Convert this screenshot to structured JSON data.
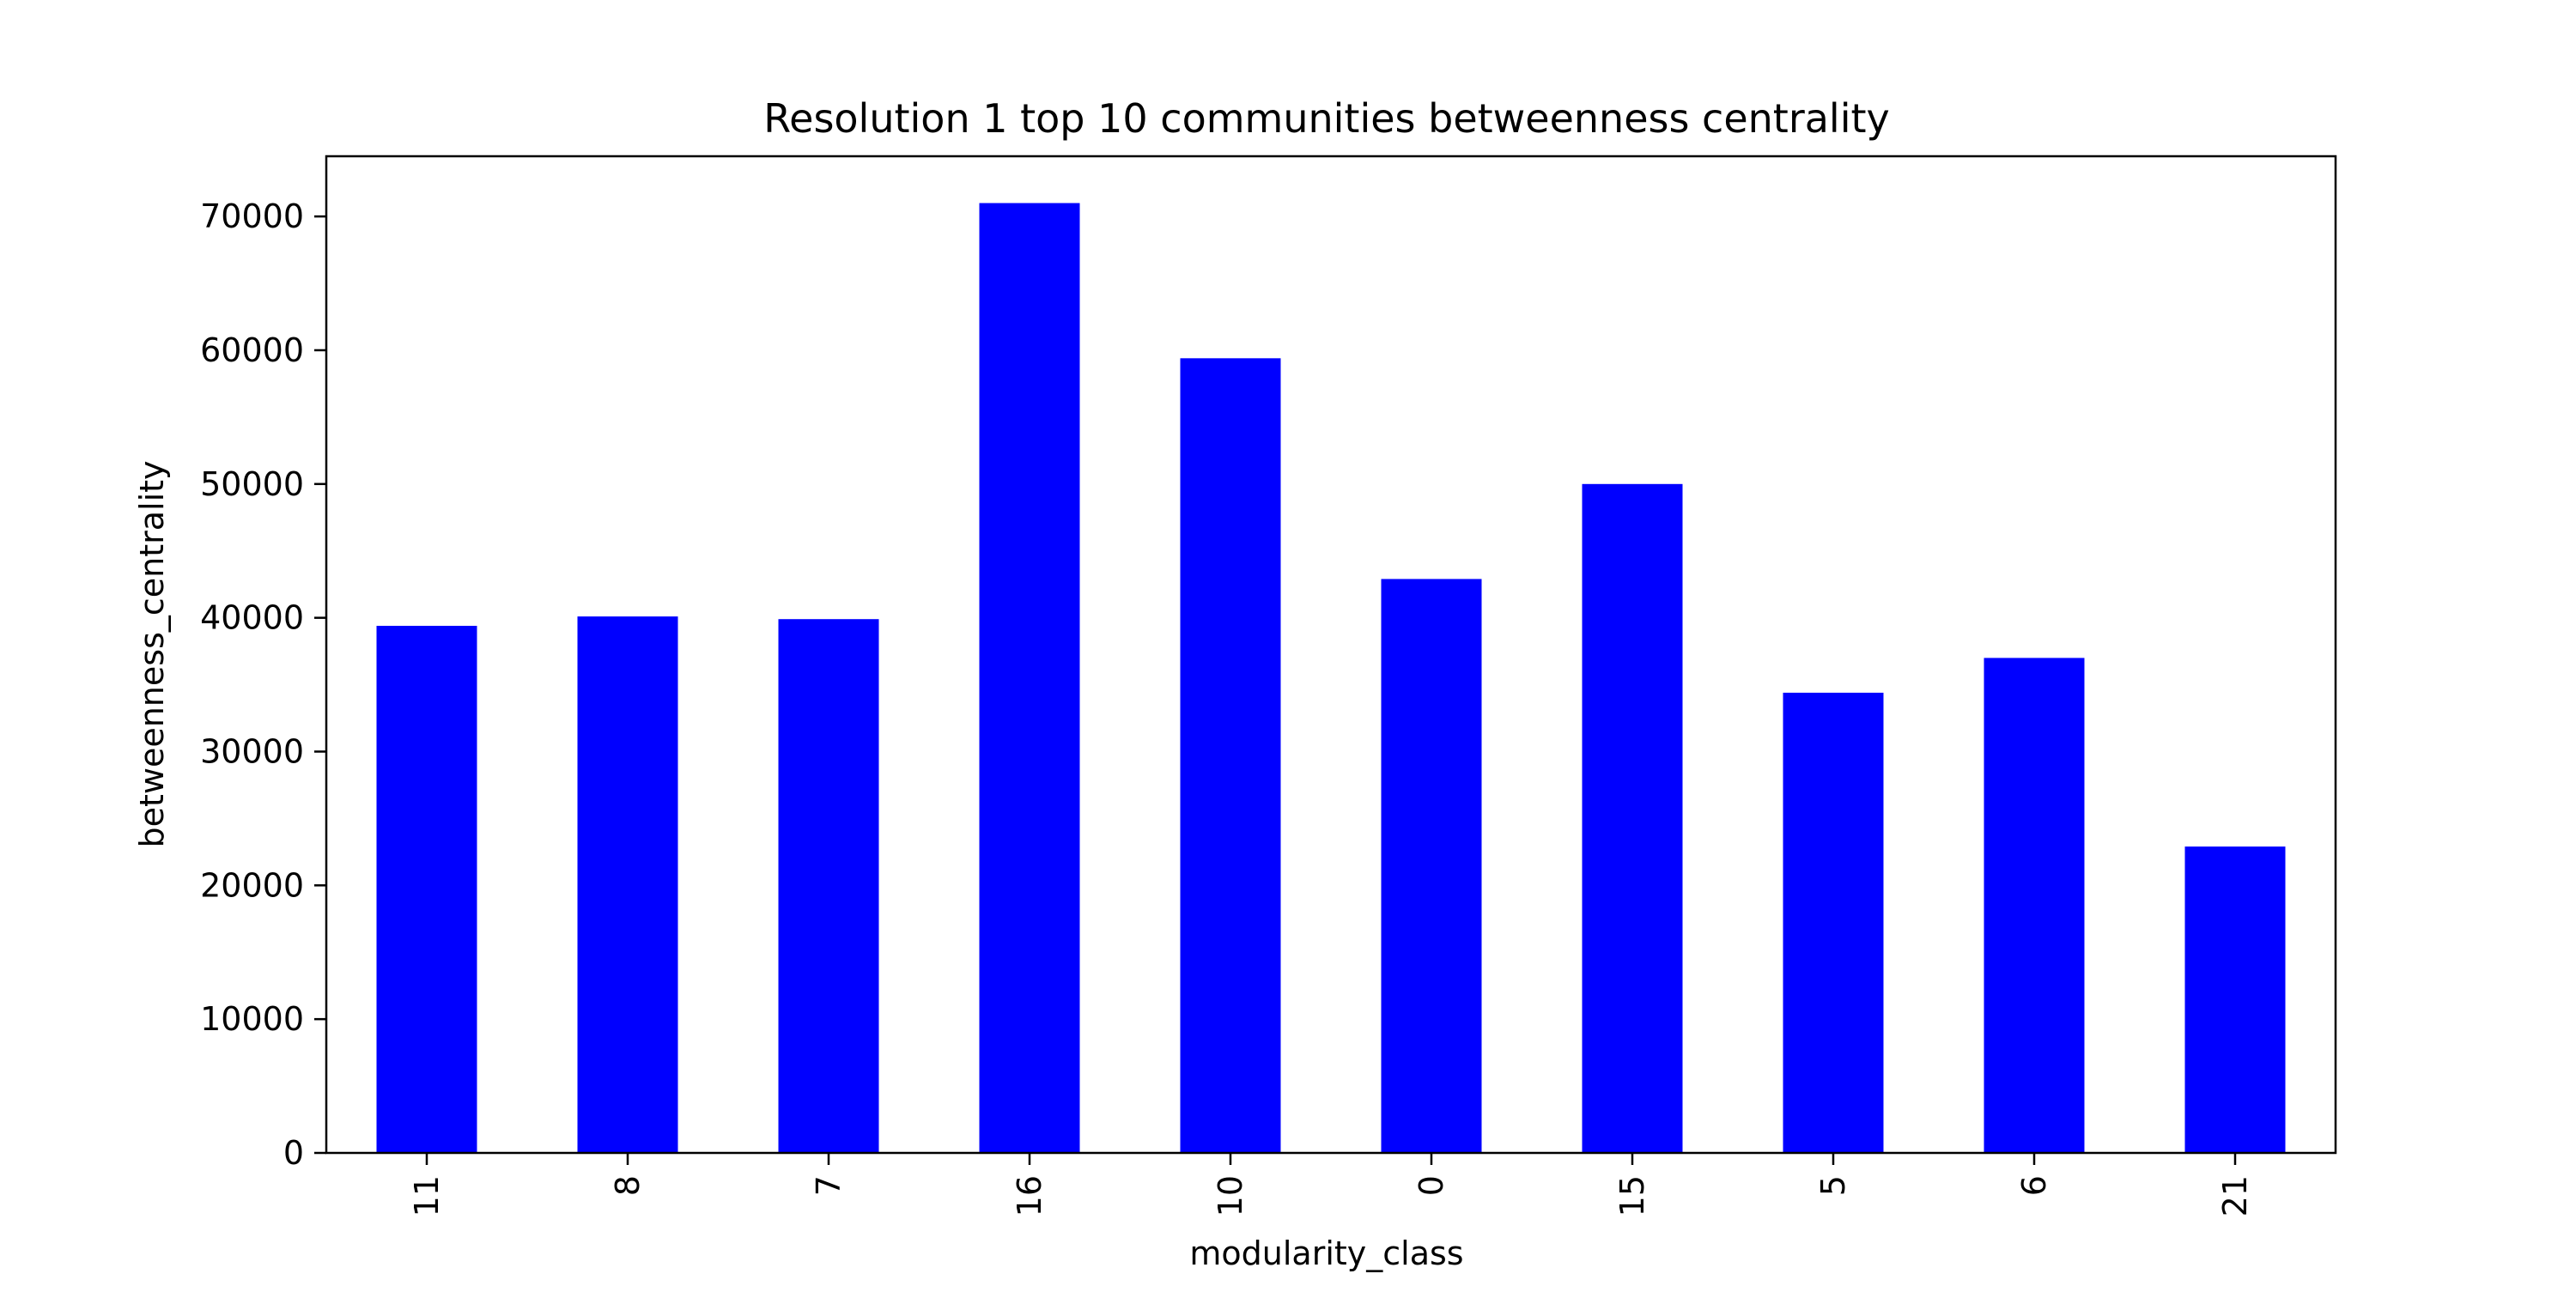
{
  "chart_data": {
    "type": "bar",
    "title": "Resolution 1 top 10 communities betweenness centrality",
    "xlabel": "modularity_class",
    "ylabel": "betweenness_centrality",
    "categories": [
      "11",
      "8",
      "7",
      "16",
      "10",
      "0",
      "15",
      "5",
      "6",
      "21"
    ],
    "values": [
      39400,
      40100,
      39900,
      71000,
      59400,
      42900,
      50000,
      34400,
      37000,
      22900
    ],
    "ylim": [
      0,
      74500
    ],
    "yticks": [
      0,
      10000,
      20000,
      30000,
      40000,
      50000,
      60000,
      70000
    ],
    "bar_color": "#0000ff",
    "grid": false,
    "legend": null
  }
}
